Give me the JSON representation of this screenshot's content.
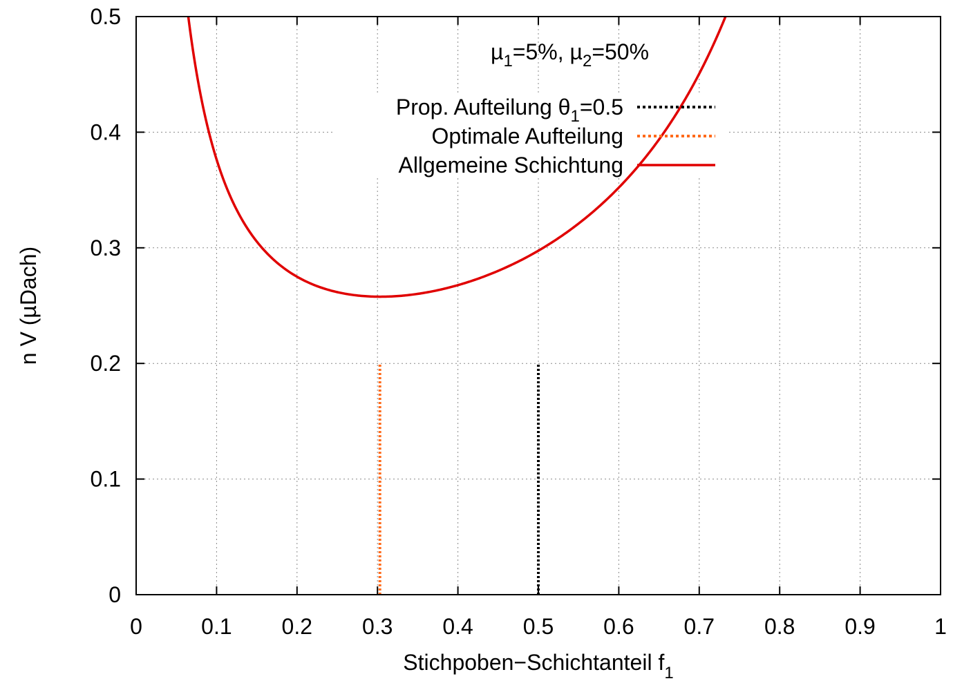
{
  "chart_data": {
    "type": "line",
    "title": "",
    "xlabel_main": "Stichpoben−Schichtanteil f",
    "xlabel_sub": "1",
    "ylabel": "n V (µDach)",
    "xlim": [
      0,
      1
    ],
    "ylim": [
      0,
      0.5
    ],
    "x_ticks": [
      "0",
      "0.1",
      "0.2",
      "0.3",
      "0.4",
      "0.5",
      "0.6",
      "0.7",
      "0.8",
      "0.9",
      "1"
    ],
    "y_ticks": [
      "0",
      "0.1",
      "0.2",
      "0.3",
      "0.4",
      "0.5"
    ],
    "grid": true,
    "legend_position": "top-right",
    "annotation": {
      "mu": "µ",
      "sub1": "1",
      "mid": "=5%, ",
      "sub2": "2",
      "end": "=50%"
    },
    "legend": [
      {
        "text_main": "Prop. Aufteilung θ",
        "text_sub": "1",
        "text_end": "=0.5",
        "color": "#000000",
        "style": "dotted"
      },
      {
        "text_main": "Optimale Aufteilung",
        "text_sub": "",
        "text_end": "",
        "color": "#ff6a1a",
        "style": "dotted"
      },
      {
        "text_main": "Allgemeine Schichtung",
        "text_sub": "",
        "text_end": "",
        "color": "#e00000",
        "style": "solid"
      }
    ],
    "series": [
      {
        "name": "Allgemeine Schichtung",
        "color": "#e00000",
        "mu1": 0.05,
        "mu2": 0.5,
        "curve": "0.5*mu1*(1-mu1)/f + 0.5*mu2*(1-mu2)/(1-f)",
        "x_range": [
          0.01,
          0.99
        ]
      },
      {
        "name": "Optimale Aufteilung",
        "color": "#ff6a1a",
        "x": [
          0.303,
          0.303
        ],
        "y": [
          0,
          0.2
        ]
      },
      {
        "name": "Prop. Aufteilung θ1=0.5",
        "color": "#000000",
        "x": [
          0.5,
          0.5
        ],
        "y": [
          0,
          0.2
        ]
      }
    ]
  }
}
